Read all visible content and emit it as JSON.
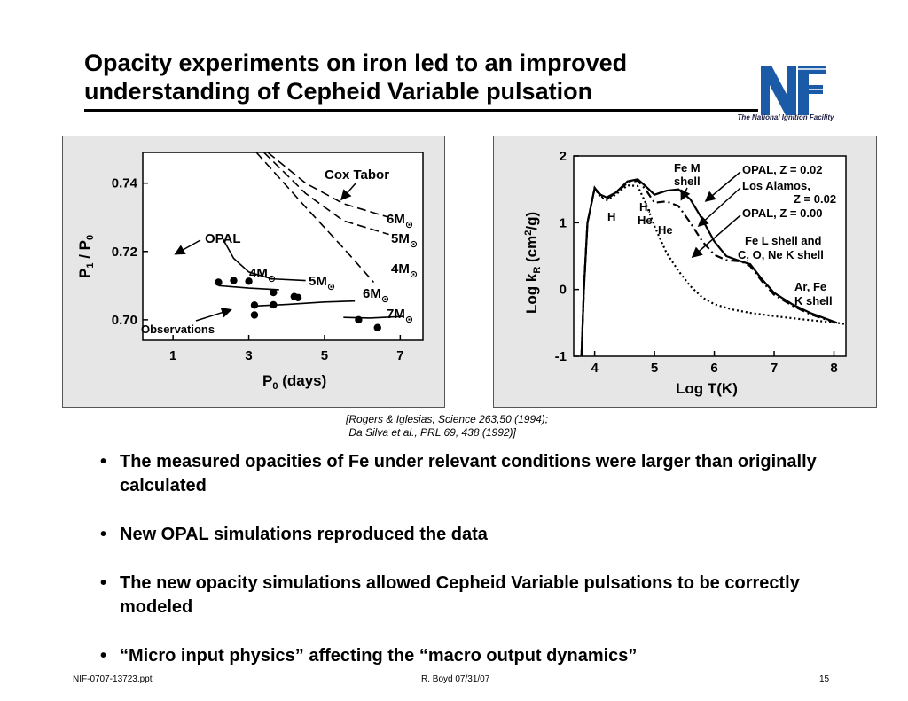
{
  "slide": {
    "title_line1": "Opacity experiments on iron led to an improved",
    "title_line2": "understanding of Cepheid Variable pulsation",
    "logo_caption": "The National Ignition Facility",
    "logo_icon": "nif-logo-icon",
    "accent_color": "#1a5aa6"
  },
  "citation": {
    "line1": "[Rogers & Iglesias, Science 263,50 (1994);",
    "line2": " Da Silva et al., PRL 69, 438 (1992)]"
  },
  "bullets": [
    {
      "text": "The measured opacities of Fe under relevant conditions were larger than originally calculated"
    },
    {
      "text": "New OPAL simulations reproduced the data"
    },
    {
      "text": "The new opacity simulations allowed Cepheid Variable pulsations to be correctly modeled"
    },
    {
      "text": "“Micro input physics” affecting the “macro output dynamics”"
    }
  ],
  "footer": {
    "left": "NIF-0707-13723.ppt",
    "center": "R. Boyd 07/31/07",
    "right": "15"
  },
  "chart_data": [
    {
      "type": "scatter",
      "xlabel_main": "P",
      "xlabel_sub": "0",
      "xlabel_rest": " (days)",
      "ylabel_a": "P",
      "ylabel_a_sub": "1",
      "ylabel_mid": " / P",
      "ylabel_b_sub": "0",
      "xlim": [
        0.2,
        7.6
      ],
      "ylim": [
        0.694,
        0.749
      ],
      "xticks": [
        1,
        3,
        5,
        7
      ],
      "yticks": [
        0.7,
        0.72,
        0.74
      ],
      "ytick_labels": [
        "0.70",
        "0.72",
        "0.74"
      ],
      "observations": [
        {
          "x": 2.2,
          "y": 0.711
        },
        {
          "x": 2.6,
          "y": 0.7115
        },
        {
          "x": 3.0,
          "y": 0.7113
        },
        {
          "x": 3.15,
          "y": 0.7043
        },
        {
          "x": 3.15,
          "y": 0.7014
        },
        {
          "x": 3.65,
          "y": 0.708
        },
        {
          "x": 3.65,
          "y": 0.7044
        },
        {
          "x": 4.2,
          "y": 0.7068
        },
        {
          "x": 4.3,
          "y": 0.7065
        },
        {
          "x": 5.9,
          "y": 0.7
        },
        {
          "x": 6.4,
          "y": 0.6977
        }
      ],
      "opal_curves": [
        [
          [
            2.3,
            0.724
          ],
          [
            2.6,
            0.718
          ],
          [
            3.0,
            0.714
          ],
          [
            3.6,
            0.712
          ],
          [
            4.5,
            0.7115
          ]
        ],
        [
          [
            2.2,
            0.71
          ],
          [
            3.0,
            0.7093
          ],
          [
            3.8,
            0.7088
          ]
        ],
        [
          [
            3.1,
            0.704
          ],
          [
            4.0,
            0.7045
          ],
          [
            5.0,
            0.7052
          ],
          [
            5.8,
            0.7055
          ]
        ],
        [
          [
            5.5,
            0.7007
          ],
          [
            6.2,
            0.7005
          ],
          [
            7.1,
            0.701
          ]
        ]
      ],
      "cox_tabor_curves": [
        [
          [
            3.5,
            0.749
          ],
          [
            4.5,
            0.74
          ],
          [
            5.5,
            0.734
          ],
          [
            6.7,
            0.73
          ]
        ],
        [
          [
            3.4,
            0.749
          ],
          [
            4.5,
            0.737
          ],
          [
            5.5,
            0.729
          ],
          [
            6.7,
            0.725
          ]
        ],
        [
          [
            3.2,
            0.749
          ],
          [
            4.5,
            0.733
          ],
          [
            5.5,
            0.721
          ],
          [
            6.3,
            0.711
          ]
        ]
      ],
      "labels": {
        "cox_tabor": "Cox Tabor",
        "opal": "OPAL",
        "observations": "Observations",
        "m6_top": "6M",
        "m5_top": "5M",
        "m4_right": "4M",
        "m4_mid": "4M",
        "m5_mid": "5M",
        "m6_mid": "6M",
        "m7": "7M"
      }
    },
    {
      "type": "line",
      "xlabel": "Log T(K)",
      "ylabel_main": "Log k",
      "ylabel_sub": "R",
      "ylabel_unit_a": " (cm",
      "ylabel_sup": "2",
      "ylabel_unit_b": "/g)",
      "xlim": [
        3.65,
        8.2
      ],
      "ylim": [
        -1,
        2
      ],
      "xticks": [
        4,
        5,
        6,
        7,
        8
      ],
      "yticks": [
        -1,
        0,
        1,
        2
      ],
      "series": [
        {
          "name": "OPAL, Z = 0.02",
          "style": "solid",
          "points": [
            [
              3.78,
              -1.0
            ],
            [
              3.82,
              0.0
            ],
            [
              3.88,
              1.0
            ],
            [
              4.0,
              1.52
            ],
            [
              4.1,
              1.42
            ],
            [
              4.2,
              1.38
            ],
            [
              4.35,
              1.45
            ],
            [
              4.55,
              1.62
            ],
            [
              4.72,
              1.65
            ],
            [
              4.85,
              1.55
            ],
            [
              5.0,
              1.42
            ],
            [
              5.2,
              1.48
            ],
            [
              5.4,
              1.5
            ],
            [
              5.6,
              1.35
            ],
            [
              5.8,
              1.05
            ],
            [
              6.0,
              0.72
            ],
            [
              6.2,
              0.5
            ],
            [
              6.45,
              0.42
            ],
            [
              6.6,
              0.38
            ],
            [
              6.8,
              0.15
            ],
            [
              7.0,
              -0.05
            ],
            [
              7.3,
              -0.22
            ],
            [
              7.6,
              -0.35
            ],
            [
              7.9,
              -0.45
            ],
            [
              8.05,
              -0.5
            ]
          ]
        },
        {
          "name": "Los Alamos, Z = 0.02",
          "style": "dashed",
          "points": [
            [
              3.78,
              -1.0
            ],
            [
              3.82,
              0.0
            ],
            [
              3.88,
              1.0
            ],
            [
              4.0,
              1.52
            ],
            [
              4.1,
              1.4
            ],
            [
              4.2,
              1.36
            ],
            [
              4.35,
              1.44
            ],
            [
              4.55,
              1.6
            ],
            [
              4.72,
              1.63
            ],
            [
              4.85,
              1.5
            ],
            [
              5.0,
              1.3
            ],
            [
              5.2,
              1.32
            ],
            [
              5.4,
              1.25
            ],
            [
              5.6,
              1.0
            ],
            [
              5.8,
              0.72
            ],
            [
              6.0,
              0.52
            ],
            [
              6.2,
              0.44
            ],
            [
              6.45,
              0.42
            ],
            [
              6.6,
              0.35
            ],
            [
              6.8,
              0.12
            ],
            [
              7.0,
              -0.08
            ],
            [
              7.3,
              -0.24
            ],
            [
              7.6,
              -0.37
            ],
            [
              7.9,
              -0.46
            ],
            [
              8.05,
              -0.5
            ]
          ]
        },
        {
          "name": "OPAL, Z = 0.00",
          "style": "dotted",
          "points": [
            [
              3.78,
              -1.0
            ],
            [
              3.82,
              0.0
            ],
            [
              3.88,
              1.0
            ],
            [
              4.0,
              1.52
            ],
            [
              4.1,
              1.38
            ],
            [
              4.2,
              1.34
            ],
            [
              4.35,
              1.42
            ],
            [
              4.55,
              1.56
            ],
            [
              4.72,
              1.55
            ],
            [
              4.85,
              1.3
            ],
            [
              5.0,
              0.95
            ],
            [
              5.2,
              0.55
            ],
            [
              5.4,
              0.28
            ],
            [
              5.6,
              0.05
            ],
            [
              5.8,
              -0.12
            ],
            [
              6.0,
              -0.22
            ],
            [
              6.3,
              -0.3
            ],
            [
              6.6,
              -0.35
            ],
            [
              7.0,
              -0.4
            ],
            [
              7.5,
              -0.45
            ],
            [
              8.05,
              -0.5
            ],
            [
              8.2,
              -0.52
            ]
          ]
        }
      ],
      "labels": {
        "fe_m_line1": "Fe M",
        "fe_m_line2": "shell",
        "opal_002": "OPAL, Z = 0.02",
        "los_alamos_line1": "Los Alamos,",
        "los_alamos_line2": "Z = 0.02",
        "opal_000": "OPAL, Z = 0.00",
        "h_serif": "H",
        "h_he_line1": "H,",
        "h_he_line2": "He",
        "he": "He",
        "fe_l_line1": "Fe L shell and",
        "fe_l_line2": "C, O, Ne K shell",
        "ar_fe_line1": "Ar, Fe",
        "ar_fe_line2": "K shell"
      }
    }
  ]
}
